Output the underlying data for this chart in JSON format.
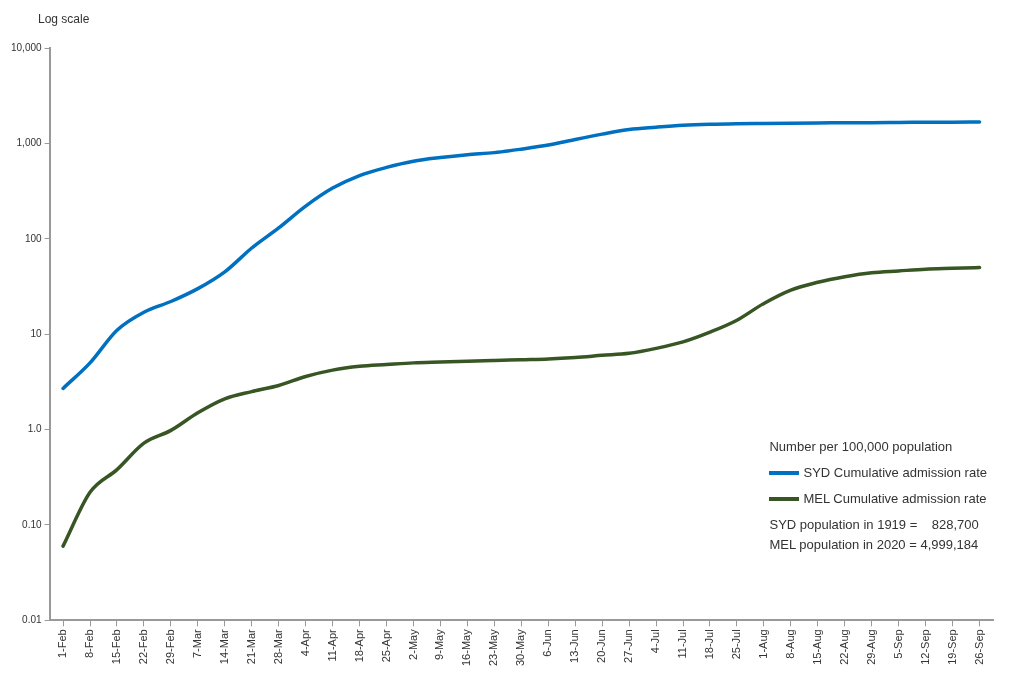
{
  "chart_data": {
    "type": "line",
    "ylabel": "Log scale",
    "legend_title": "Number per 100,000 population",
    "log": true,
    "grid": false,
    "legend": "bottom right",
    "marker": "none",
    "line_style": "solid",
    "categories": [
      "1-Feb",
      "8-Feb",
      "15-Feb",
      "22-Feb",
      "29-Feb",
      "7-Mar",
      "14-Mar",
      "21-Mar",
      "28-Mar",
      "4-Apr",
      "11-Apr",
      "18-Apr",
      "25-Apr",
      "2-May",
      "9-May",
      "16-May",
      "23-May",
      "30-May",
      "6-Jun",
      "13-Jun",
      "20-Jun",
      "27-Jun",
      "4-Jul",
      "11-Jul",
      "18-Jul",
      "25-Jul",
      "1-Aug",
      "8-Aug",
      "15-Aug",
      "22-Aug",
      "29-Aug",
      "5-Sep",
      "12-Sep",
      "19-Sep",
      "26-Sep"
    ],
    "ylim": [
      0.01,
      10000
    ],
    "yticks": [
      0.01,
      {
        "value": 0.1,
        "label": "0.10"
      },
      {
        "value": 1,
        "label": "1.0"
      },
      10,
      100,
      {
        "value": 1000,
        "label": "1,000"
      },
      {
        "value": 10000,
        "label": "10,000"
      }
    ],
    "series": [
      {
        "name": "SYD Cumulative admission rate",
        "color": "#0070c0",
        "values": [
          2.7,
          5,
          11,
          17,
          22,
          30,
          45,
          80,
          130,
          220,
          340,
          460,
          560,
          650,
          710,
          760,
          800,
          870,
          960,
          1100,
          1250,
          1400,
          1480,
          1550,
          1590,
          1610,
          1620,
          1630,
          1640,
          1650,
          1650,
          1660,
          1670,
          1670,
          1680
        ]
      },
      {
        "name": "MEL Cumulative admission rate",
        "color": "#375623",
        "values": [
          0.06,
          0.22,
          0.38,
          0.72,
          0.98,
          1.5,
          2.1,
          2.5,
          2.9,
          3.6,
          4.2,
          4.6,
          4.8,
          5.0,
          5.1,
          5.2,
          5.3,
          5.4,
          5.5,
          5.7,
          6.0,
          6.3,
          7.1,
          8.3,
          10.5,
          14,
          21,
          29,
          35,
          40,
          44,
          46,
          48,
          49,
          50
        ]
      }
    ],
    "annotations": [
      "SYD population in 1919 =    828,700",
      "MEL population in 2020 = 4,999,184"
    ]
  }
}
